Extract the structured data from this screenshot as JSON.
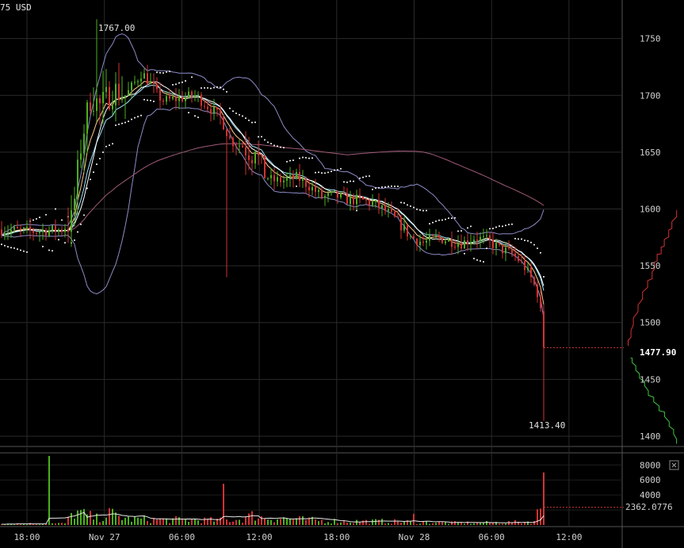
{
  "header": {
    "pair_label": "75 USD"
  },
  "chart_data": {
    "type": "candlestick",
    "price_axis": {
      "ticks": [
        1400,
        1450,
        1500,
        1550,
        1600,
        1650,
        1700,
        1750
      ],
      "range": [
        1393,
        1770
      ]
    },
    "volume_axis": {
      "ticks": [
        2000,
        4000,
        6000,
        8000
      ],
      "tick_labels": [
        "",
        "4000",
        "6000",
        "8000"
      ],
      "range": [
        0,
        9300
      ]
    },
    "time_axis": {
      "labels": [
        "18:00",
        "Nov 27",
        "06:00",
        "12:00",
        "18:00",
        "Nov 28",
        "06:00",
        "12:00"
      ]
    },
    "annotations": {
      "high_label": "1767.00",
      "low_label": "1413.40"
    },
    "current_price_label": "1477.90",
    "current_volume_label": "2362.0776",
    "close_icon": "close-icon",
    "colors": {
      "up": "#4caf1e",
      "down": "#d23232",
      "grid": "#2a2a2a",
      "bollinger": "#8c8cc8",
      "sma200": "#a05a78",
      "ema_fast": "#ffc88c",
      "ema_slow": "#a0e6ff",
      "sma_mid": "#ffffff",
      "sar": "#ffffff",
      "bids": "#3fc43f",
      "asks": "#d23232"
    },
    "price_path": [
      [
        0,
        1582
      ],
      [
        10,
        1580
      ],
      [
        20,
        1582
      ],
      [
        23,
        1590
      ],
      [
        26,
        1660
      ],
      [
        29,
        1700
      ],
      [
        32,
        1690
      ],
      [
        36,
        1705
      ],
      [
        40,
        1700
      ],
      [
        45,
        1720
      ],
      [
        48,
        1710
      ],
      [
        50,
        1700
      ],
      [
        52,
        1695
      ],
      [
        58,
        1698
      ],
      [
        62,
        1700
      ],
      [
        66,
        1690
      ],
      [
        70,
        1680
      ],
      [
        73,
        1660
      ],
      [
        77,
        1655
      ],
      [
        80,
        1648
      ],
      [
        81,
        1660
      ],
      [
        82,
        1640
      ],
      [
        84,
        1630
      ],
      [
        86,
        1625
      ],
      [
        90,
        1625
      ],
      [
        94,
        1628
      ],
      [
        98,
        1620
      ],
      [
        102,
        1610
      ],
      [
        106,
        1612
      ],
      [
        110,
        1608
      ],
      [
        114,
        1608
      ],
      [
        118,
        1605
      ],
      [
        122,
        1598
      ],
      [
        126,
        1588
      ],
      [
        130,
        1575
      ],
      [
        134,
        1570
      ],
      [
        138,
        1575
      ],
      [
        142,
        1572
      ],
      [
        146,
        1570
      ],
      [
        150,
        1575
      ],
      [
        154,
        1572
      ],
      [
        158,
        1565
      ],
      [
        162,
        1560
      ],
      [
        164,
        1555
      ],
      [
        166,
        1548
      ],
      [
        168,
        1538
      ],
      [
        170,
        1525
      ],
      [
        171,
        1505
      ],
      [
        171.8,
        1477.9
      ]
    ],
    "volume_path": [
      [
        0,
        200
      ],
      [
        10,
        180
      ],
      [
        20,
        220
      ],
      [
        23,
        1800
      ],
      [
        25,
        1500
      ],
      [
        30,
        900
      ],
      [
        34,
        1500
      ],
      [
        40,
        800
      ],
      [
        50,
        700
      ],
      [
        60,
        700
      ],
      [
        70,
        600
      ],
      [
        76,
        800
      ],
      [
        80,
        1400
      ],
      [
        82,
        1000
      ],
      [
        88,
        900
      ],
      [
        100,
        600
      ],
      [
        110,
        500
      ],
      [
        120,
        500
      ],
      [
        130,
        400
      ],
      [
        140,
        300
      ],
      [
        150,
        300
      ],
      [
        160,
        350
      ],
      [
        168,
        500
      ],
      [
        170,
        2400
      ],
      [
        171.8,
        1800
      ]
    ]
  }
}
